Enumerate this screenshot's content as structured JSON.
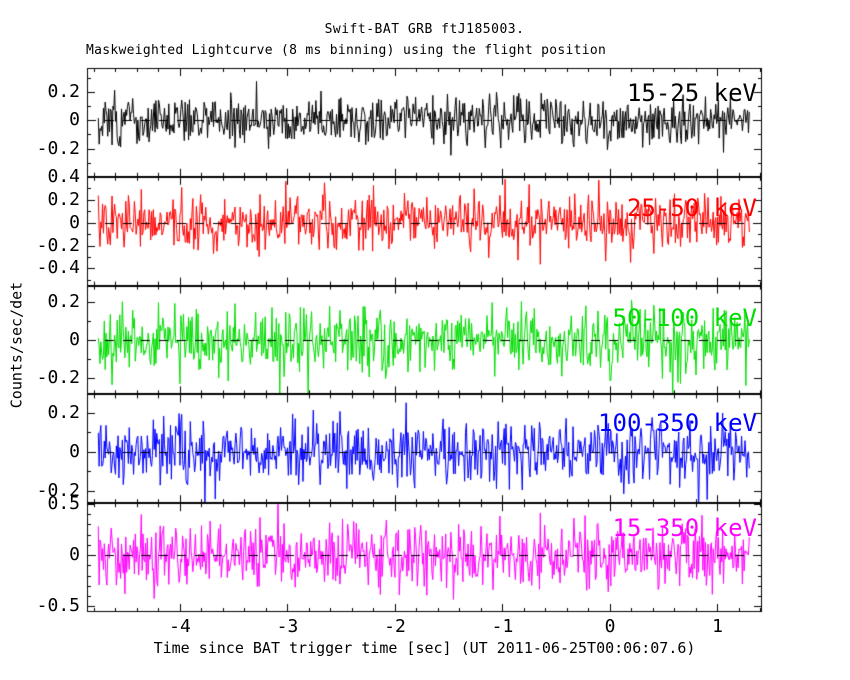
{
  "page": {
    "background": "#ffffff"
  },
  "chart_data": {
    "type": "line",
    "title": "Swift-BAT GRB ftJ185003.",
    "subtitle": "Maskweighted Lightcurve (8 ms binning) using the flight position",
    "xlabel": "Time since BAT trigger time [sec] (UT 2011-06-25T00:06:07.6)",
    "ylabel": "Counts/sec/det",
    "trigger_time_utc": "2011-06-25T00:06:07.6",
    "binning": "8 ms",
    "legend_position": "inside-top-right-per-panel",
    "grid": false,
    "x_axis": {
      "min": -4.865,
      "max": 1.414,
      "major_ticks": [
        -4,
        -3,
        -2,
        -1,
        0,
        1
      ],
      "tick_labels": [
        "-4",
        "-3",
        "-2",
        "-1",
        "0",
        "1"
      ],
      "minor_step": 0.2
    },
    "zero_line": {
      "style": "dashed",
      "color": "#000000"
    },
    "data_t_start": -4.76,
    "data_t_end": 1.3,
    "bin_sec": 0.008,
    "panels": [
      {
        "band": "15-25 keV",
        "color": "#000000",
        "ymin": -0.4,
        "ymax": 0.37,
        "major_ticks": [
          {
            "v": 0.2,
            "label": "0.2"
          },
          {
            "v": 0,
            "label": "0"
          },
          {
            "v": -0.2,
            "label": "-0.2"
          }
        ],
        "minor_step": 0.1,
        "noise_sigma": 0.085,
        "seed": 101,
        "label_dy": 22
      },
      {
        "band": "25-50 keV",
        "color": "#ff0000",
        "ymin": -0.55,
        "ymax": 0.4,
        "major_ticks": [
          {
            "v": 0.4,
            "label": "0.4"
          },
          {
            "v": 0.2,
            "label": "0.2"
          },
          {
            "v": 0,
            "label": "0"
          },
          {
            "v": -0.2,
            "label": "-0.2"
          },
          {
            "v": -0.4,
            "label": "-0.4"
          }
        ],
        "minor_step": 0.1,
        "noise_sigma": 0.12,
        "seed": 202,
        "label_dy": 28
      },
      {
        "band": "50-100 keV",
        "color": "#00dd00",
        "ymin": -0.285,
        "ymax": 0.285,
        "major_ticks": [
          {
            "v": 0.2,
            "label": "0.2"
          },
          {
            "v": 0,
            "label": "0"
          },
          {
            "v": -0.2,
            "label": "-0.2"
          }
        ],
        "minor_step": 0.1,
        "noise_sigma": 0.085,
        "seed": 303,
        "label_dy": 29
      },
      {
        "band": "100-350 keV",
        "color": "#0000ff",
        "ymin": -0.263,
        "ymax": 0.295,
        "major_ticks": [
          {
            "v": 0.2,
            "label": "0.2"
          },
          {
            "v": 0,
            "label": "0"
          },
          {
            "v": -0.2,
            "label": "-0.2"
          }
        ],
        "minor_step": 0.1,
        "noise_sigma": 0.085,
        "seed": 404,
        "label_dy": 26
      },
      {
        "band": "15-350 keV",
        "color": "#ff00ff",
        "ymin": -0.555,
        "ymax": 0.505,
        "major_ticks": [
          {
            "v": 0.5,
            "label": "0.5"
          },
          {
            "v": 0,
            "label": "0"
          },
          {
            "v": -0.5,
            "label": "-0.5"
          }
        ],
        "minor_step": 0.1,
        "noise_sigma": 0.16,
        "seed": 505,
        "label_dy": 22
      }
    ]
  }
}
